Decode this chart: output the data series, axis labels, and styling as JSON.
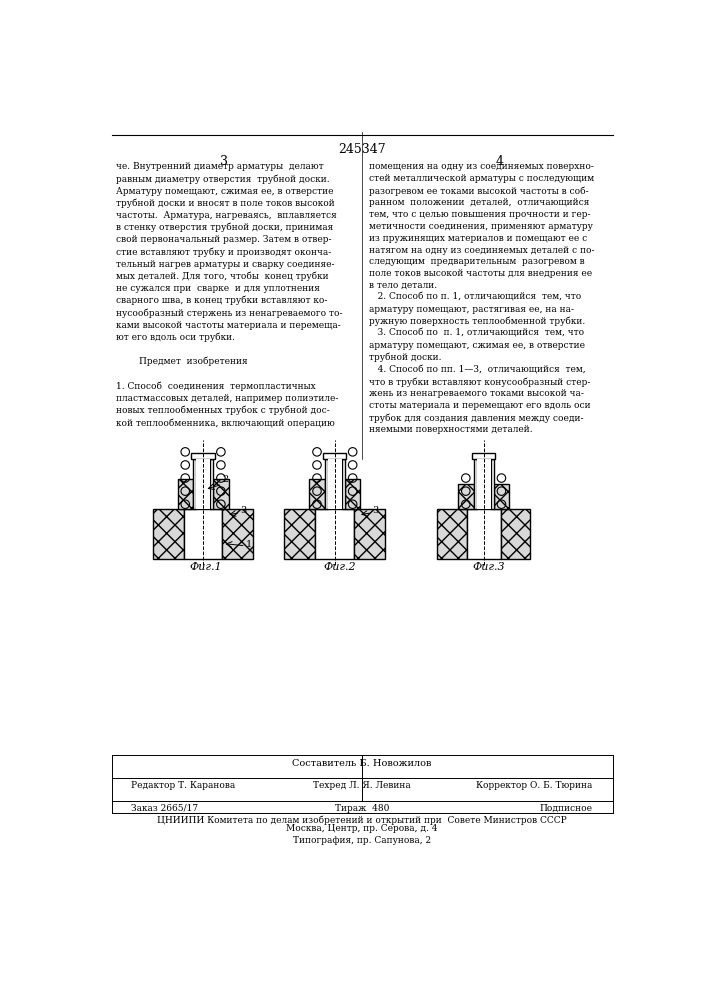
{
  "page_number": "245347",
  "col_left_number": "3",
  "col_right_number": "4",
  "bg_color": "#ffffff",
  "text_color": "#000000",
  "left_text": "че. Внутренний диаметр арматуры  делают\nравным диаметру отверстия  трубной доски.\nАрматуру помещают, сжимая ее, в отверстие\nтрубной доски и вносят в поле токов высокой\nчастоты.  Арматура, нагреваясь,  вплавляется\nв стенку отверстия трубной доски, принимая\nсвой первоначальный размер. Затем в отвер-\nстие вставляют трубку и производят оконча-\nтельный нагрев арматуры и сварку соединяе-\nмых деталей. Для того, чтобы  конец трубки\nне сужался при  сварке  и для уплотнения\nсварного шва, в конец трубки вставляют ко-\nнусообразный стержень из ненагреваемого то-\nками высокой частоты материала и перемеща-\nют его вдоль оси трубки.\n\n        Предмет  изобретения\n\n1. Способ  соединения  термопластичных\nпластмассовых деталей, например полиэтиле-\nновых теплообменных трубок с трубной дос-\nкой теплообменника, включающий операцию",
  "right_text": "помещения на одну из соединяемых поверхно-\nстей металлической арматуры с последующим\nразогревом ее токами высокой частоты в соб-\nранном  положении  деталей,  отличающийся\nтем, что с целью повышения прочности и гер-\nметичности соединения, применяют арматуру\nиз пружинящих материалов и помещают ее с\nнатягом на одну из соединяемых деталей с по-\nследующим  предварительным  разогревом в\nполе токов высокой частоты для внедрения ее\nв тело детали.\n   2. Способ по п. 1, отличающийся  тем, что\nарматуру помещают, растягивая ее, на на-\nружную поверхность теплообменной трубки.\n   3. Способ по  п. 1, отличающийся  тем, что\nарматуру помещают, сжимая ее, в отверстие\nтрубной доски.\n   4. Способ по пп. 1—3,  отличающийся  тем,\nчто в трубки вставляют конусообразный стер-\nжень из ненагреваемого токами высокой ча-\nстоты материала и перемещают его вдоль оси\nтрубок для создания давления между соеди-\nняемыми поверхностями деталей.",
  "footer_line1": "Составитель Б. Новожилов",
  "footer_line2_left": "Редактор Т. Каранова",
  "footer_line2_mid": "Техред Л. Я. Левина",
  "footer_line2_right": "Корректор О. Б. Тюрина",
  "footer_line3_left": "Заказ 2665/17",
  "footer_line3_mid": "Тираж  480",
  "footer_line3_right": "Подписное",
  "footer_line4": "ЦНИИПИ Комитета по делам изобретений и открытий при  Совете Министров СССР",
  "footer_line5": "Москва, Центр, пр. Серова, д. 4",
  "footer_line6": "Типография, пр. Сапунова, 2",
  "fig_caption1": "Фиг.1",
  "fig_caption2": "Фиг.2",
  "fig_caption3": "Фиг.3"
}
